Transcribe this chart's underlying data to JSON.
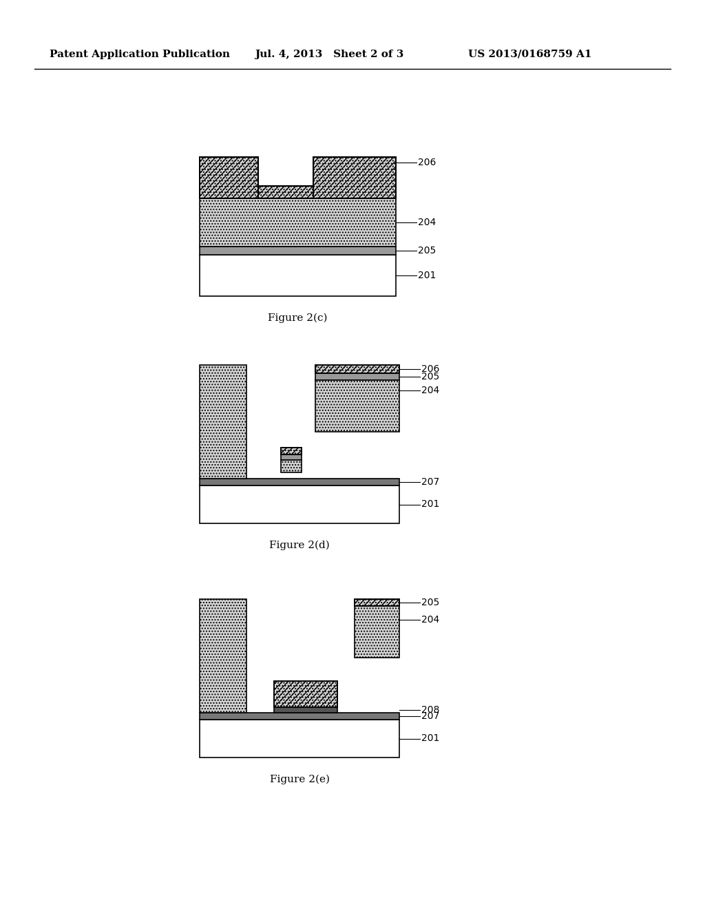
{
  "header_left": "Patent Application Publication",
  "header_mid": "Jul. 4, 2013   Sheet 2 of 3",
  "header_right": "US 2013/0168759 A1",
  "fig_c_label": "Figure 2(c)",
  "fig_d_label": "Figure 2(d)",
  "fig_e_label": "Figure 2(e)",
  "bg_color": "#ffffff",
  "line_color": "#000000",
  "dotted_fill": "#d4d4d4",
  "white_fill": "#ffffff"
}
